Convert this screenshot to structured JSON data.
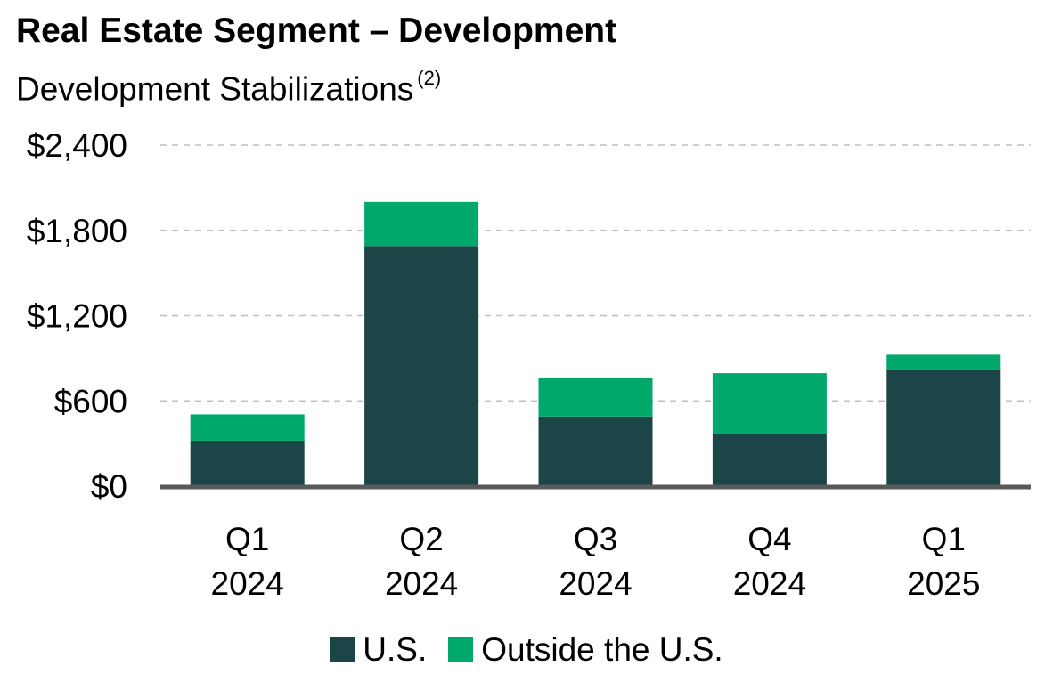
{
  "title": "Real Estate Segment – Development",
  "subtitle": "Development Stabilizations",
  "subtitle_note": "(2)",
  "colors": {
    "us": "#1b4546",
    "outside_us": "#00a86b",
    "axis": "#595959",
    "grid": "#bfbfbf"
  },
  "chart_data": {
    "type": "bar",
    "stacked": true,
    "categories": [
      [
        "Q1",
        "2024"
      ],
      [
        "Q2",
        "2024"
      ],
      [
        "Q3",
        "2024"
      ],
      [
        "Q4",
        "2024"
      ],
      [
        "Q1",
        "2025"
      ]
    ],
    "series": [
      {
        "name": "U.S.",
        "values": [
          320,
          1690,
          490,
          365,
          815
        ]
      },
      {
        "name": "Outside the U.S.",
        "values": [
          185,
          310,
          275,
          430,
          110
        ]
      }
    ],
    "ylim": [
      0,
      2400
    ],
    "yticks": [
      0,
      600,
      1200,
      1800,
      2400
    ],
    "ytick_labels": [
      "$0",
      "$600",
      "$1,200",
      "$1,800",
      "$2,400"
    ],
    "grid": true,
    "legend_position": "bottom"
  }
}
